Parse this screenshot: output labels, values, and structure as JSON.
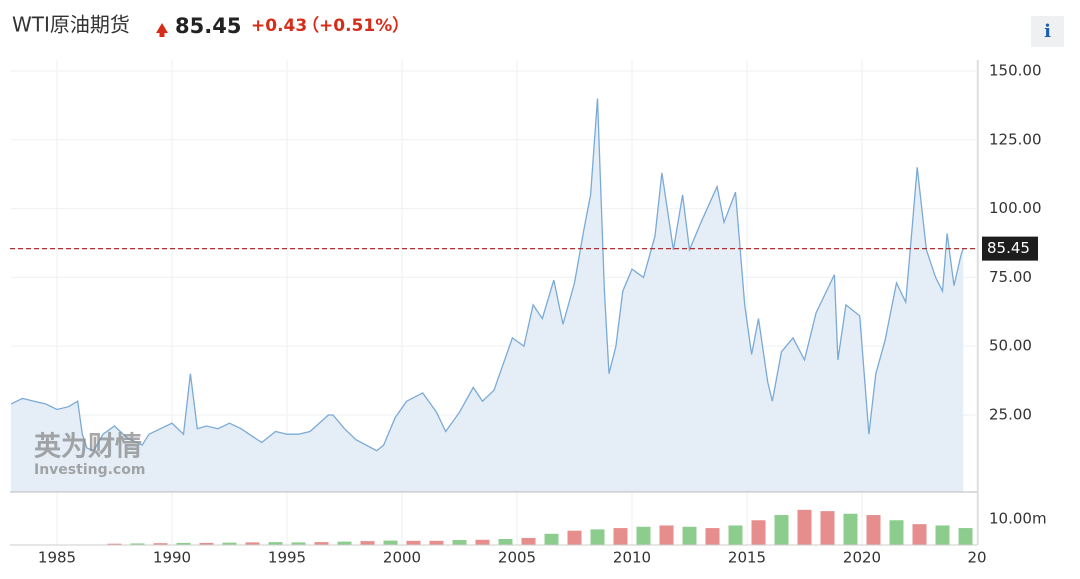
{
  "header": {
    "title": "WTI原油期货",
    "price": "85.45",
    "change": "+0.43",
    "change_pct": "（+0.51%）",
    "info": "i"
  },
  "watermark": {
    "cn": "英为财情",
    "en": "Investing.com"
  },
  "chart_data": {
    "type": "line",
    "x": [
      1983.0,
      1983.5,
      1984.0,
      1984.5,
      1985.0,
      1985.5,
      1985.9,
      1986.1,
      1986.3,
      1986.6,
      1987.0,
      1987.5,
      1988.0,
      1988.7,
      1989.0,
      1989.5,
      1990.0,
      1990.5,
      1990.8,
      1991.1,
      1991.5,
      1992.0,
      1992.5,
      1993.0,
      1993.9,
      1994.5,
      1995.0,
      1995.5,
      1996.0,
      1996.8,
      1997.0,
      1997.5,
      1998.0,
      1998.9,
      1999.2,
      1999.7,
      2000.2,
      2000.9,
      2001.5,
      2001.9,
      2002.5,
      2003.1,
      2003.5,
      2004.0,
      2004.8,
      2005.3,
      2005.7,
      2006.1,
      2006.6,
      2007.0,
      2007.5,
      2007.9,
      2008.2,
      2008.5,
      2008.8,
      2009.0,
      2009.3,
      2009.6,
      2010.0,
      2010.5,
      2011.0,
      2011.3,
      2011.8,
      2012.2,
      2012.5,
      2013.0,
      2013.7,
      2014.0,
      2014.5,
      2014.9,
      2015.2,
      2015.5,
      2015.9,
      2016.1,
      2016.5,
      2017.0,
      2017.5,
      2018.0,
      2018.8,
      2018.95,
      2019.3,
      2019.9,
      2020.3,
      2020.6,
      2021.0,
      2021.5,
      2021.9,
      2022.2,
      2022.4,
      2022.8,
      2023.2,
      2023.5,
      2023.7,
      2024.0,
      2024.3,
      2024.4
    ],
    "series": [
      {
        "color": "#7aaad6",
        "values": [
          29,
          31,
          30,
          29,
          27,
          28,
          30,
          18,
          13,
          12,
          18,
          21,
          17,
          14,
          18,
          20,
          22,
          18,
          40,
          20,
          21,
          20,
          22,
          20,
          15,
          19,
          18,
          18,
          19,
          25,
          25,
          20,
          16,
          12,
          14,
          24,
          30,
          33,
          26,
          19,
          26,
          35,
          30,
          34,
          53,
          50,
          65,
          60,
          74,
          58,
          73,
          92,
          105,
          140,
          70,
          40,
          50,
          70,
          78,
          75,
          90,
          113,
          85,
          105,
          85,
          95,
          108,
          95,
          106,
          65,
          47,
          60,
          37,
          30,
          48,
          53,
          45,
          62,
          76,
          45,
          65,
          61,
          18,
          40,
          52,
          73,
          66,
          95,
          115,
          85,
          75,
          70,
          91,
          72,
          83,
          85.45
        ]
      }
    ],
    "last": 85.45,
    "last_color": "#b03030",
    "xlim": [
      1983,
      2025
    ],
    "xticks": [
      1985,
      1990,
      1995,
      2000,
      2005,
      2010,
      2015,
      2020,
      {
        "value": 2025,
        "label": "20"
      }
    ],
    "ylim": [
      -3,
      154
    ],
    "yticks": [
      {
        "value": 25,
        "label": "25.00"
      },
      {
        "value": 50,
        "label": "50.00"
      },
      {
        "value": 75,
        "label": "75.00"
      },
      {
        "value": 100,
        "label": "100.00"
      },
      {
        "value": 125,
        "label": "125.00"
      },
      {
        "value": 150,
        "label": "150.00"
      }
    ],
    "grid": true,
    "volume": {
      "x": [
        1987,
        1988,
        1989,
        1990,
        1991,
        1992,
        1993,
        1994,
        1995,
        1996,
        1997,
        1998,
        1999,
        2000,
        2001,
        2002,
        2003,
        2004,
        2005,
        2006,
        2007,
        2008,
        2009,
        2010,
        2011,
        2012,
        2013,
        2014,
        2015,
        2016,
        2017,
        2018,
        2019,
        2020,
        2021,
        2022,
        2023,
        2024
      ],
      "values": [
        0.5,
        0.6,
        0.7,
        0.8,
        0.8,
        0.9,
        1.0,
        1.1,
        1.0,
        1.1,
        1.3,
        1.5,
        1.7,
        1.6,
        1.6,
        1.9,
        2.0,
        2.3,
        2.7,
        4.3,
        5.5,
        6.0,
        6.5,
        7.0,
        7.5,
        7.0,
        6.5,
        7.5,
        9.5,
        11.5,
        13.5,
        13.0,
        12.0,
        11.5,
        9.5,
        8.0,
        7.5,
        6.5
      ],
      "colors": [
        "#e07070",
        "#6fbf6f",
        "#e07070",
        "#6fbf6f",
        "#e07070",
        "#6fbf6f",
        "#e07070",
        "#6fbf6f",
        "#6fbf6f",
        "#e07070",
        "#6fbf6f",
        "#e07070",
        "#6fbf6f",
        "#e07070",
        "#e07070",
        "#6fbf6f",
        "#e07070",
        "#6fbf6f",
        "#e07070",
        "#6fbf6f",
        "#e07070",
        "#6fbf6f",
        "#e07070",
        "#6fbf6f",
        "#e07070",
        "#6fbf6f",
        "#e07070",
        "#6fbf6f",
        "#e07070",
        "#6fbf6f",
        "#e07070",
        "#e07070",
        "#6fbf6f",
        "#e07070",
        "#6fbf6f",
        "#e07070",
        "#6fbf6f",
        "#6fbf6f"
      ],
      "ylim": [
        0,
        19.2
      ],
      "yticks": [
        {
          "value": 10,
          "label": "10.00m"
        }
      ]
    }
  }
}
